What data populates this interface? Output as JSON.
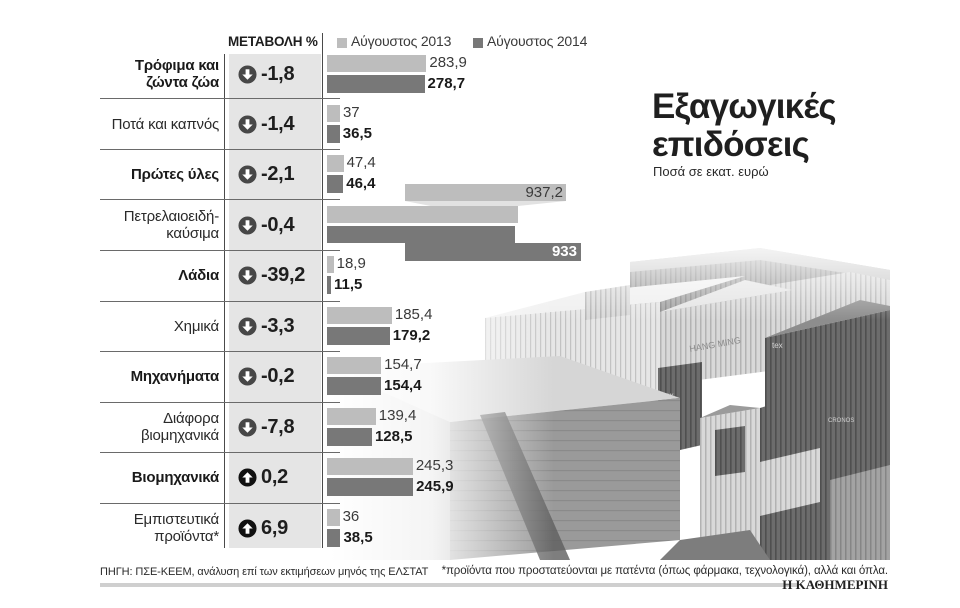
{
  "header": {
    "change_label": "ΜΕΤΑΒΟΛΗ %",
    "legend": [
      {
        "label": "Αύγουστος 2013",
        "color": "#bdbdbd"
      },
      {
        "label": "Αύγουστος 2014",
        "color": "#787878"
      }
    ]
  },
  "title": {
    "line1": "Εξαγωγικές",
    "line2": "επιδόσεις",
    "subtitle": "Ποσά σε εκατ. ευρώ"
  },
  "rows": [
    {
      "label": [
        "Τρόφιμα και",
        "ζώντα ζώα"
      ],
      "change": "-1,8",
      "direction_icon": "arrow-down-circle-icon",
      "v2013": "283,9",
      "v2014": "278,7"
    },
    {
      "label": [
        "Ποτά και καπνός"
      ],
      "change": "-1,4",
      "direction_icon": "arrow-down-circle-icon",
      "v2013": "37",
      "v2014": "36,5"
    },
    {
      "label": [
        "Πρώτες ύλες"
      ],
      "change": "-2,1",
      "direction_icon": "arrow-down-circle-icon",
      "v2013": "47,4",
      "v2014": "46,4"
    },
    {
      "label": [
        "Πετρελαιοειδή-",
        "καύσιμα"
      ],
      "change": "-0,4",
      "direction_icon": "arrow-down-circle-icon",
      "v2013": "937,2",
      "v2014": "933"
    },
    {
      "label": [
        "Λάδια"
      ],
      "change": "-39,2",
      "direction_icon": "arrow-down-circle-icon",
      "v2013": "18,9",
      "v2014": "11,5"
    },
    {
      "label": [
        "Χημικά"
      ],
      "change": "-3,3",
      "direction_icon": "arrow-down-circle-icon",
      "v2013": "185,4",
      "v2014": "179,2"
    },
    {
      "label": [
        "Μηχανήματα"
      ],
      "change": "-0,2",
      "direction_icon": "arrow-down-circle-icon",
      "v2013": "154,7",
      "v2014": "154,4"
    },
    {
      "label": [
        "Διάφορα",
        "βιομηχανικά"
      ],
      "change": "-7,8",
      "direction_icon": "arrow-down-circle-icon",
      "v2013": "139,4",
      "v2014": "128,5"
    },
    {
      "label": [
        "Βιομηχανικά"
      ],
      "change": "0,2",
      "direction_icon": "arrow-up-circle-icon",
      "v2013": "245,3",
      "v2014": "245,9"
    },
    {
      "label": [
        "Εμπιστευτικά",
        "προϊόντα*"
      ],
      "change": "6,9",
      "direction_icon": "arrow-up-circle-icon",
      "v2013": "36",
      "v2014": "38,5"
    }
  ],
  "footer": {
    "source": "ΠΗΓΗ: ΠΣΕ-ΚΕΕΜ, ανάλυση επί των εκτιμήσεων μηνός της ΕΛΣΤΑΤ",
    "note": "*προϊόντα που προστατεύονται με πατέντα (όπως φάρμακα, τεχνολογικά), αλλά και όπλα.",
    "brand": "Η ΚΑΘΗΜΕΡΙΝΗ"
  },
  "photo": {
    "subject": "shipping-containers-photo",
    "container_labels": [
      "HANG MING",
      "tex",
      "tex",
      "CRONOS"
    ]
  },
  "colors": {
    "bar_2013": "#bdbdbd",
    "bar_2014": "#787878",
    "change_band": "#e5e5e5",
    "icon_down": "#474747",
    "icon_up": "#111111"
  },
  "chart_data": {
    "type": "bar",
    "orientation": "horizontal",
    "title": "Εξαγωγικές επιδόσεις",
    "subtitle": "Ποσά σε εκατ. ευρώ",
    "xlabel": "",
    "ylabel": "",
    "legend_position": "top",
    "grid": false,
    "categories": [
      "Τρόφιμα και ζώντα ζώα",
      "Ποτά και καπνός",
      "Πρώτες ύλες",
      "Πετρελαιοειδή-καύσιμα",
      "Λάδια",
      "Χημικά",
      "Μηχανήματα",
      "Διάφορα βιομηχανικά",
      "Βιομηχανικά",
      "Εμπιστευτικά προϊόντα*"
    ],
    "series": [
      {
        "name": "Αύγουστος 2013",
        "values": [
          283.9,
          37,
          47.4,
          937.2,
          18.9,
          185.4,
          154.7,
          139.4,
          245.3,
          36
        ]
      },
      {
        "name": "Αύγουστος 2014",
        "values": [
          278.7,
          36.5,
          46.4,
          933,
          11.5,
          179.2,
          154.4,
          128.5,
          245.9,
          38.5
        ]
      }
    ],
    "change_pct_label": "ΜΕΤΑΒΟΛΗ %",
    "change_pct": [
      -1.8,
      -1.4,
      -2.1,
      -0.4,
      -39.2,
      -3.3,
      -0.2,
      -7.8,
      0.2,
      6.9
    ],
    "broken_axis_category": "Πετρελαιοειδή-καύσιμα",
    "source": "ΠΗΓΗ: ΠΣΕ-ΚΕΕΜ, ανάλυση επί των εκτιμήσεων μηνός της ΕΛΣΤΑΤ"
  }
}
